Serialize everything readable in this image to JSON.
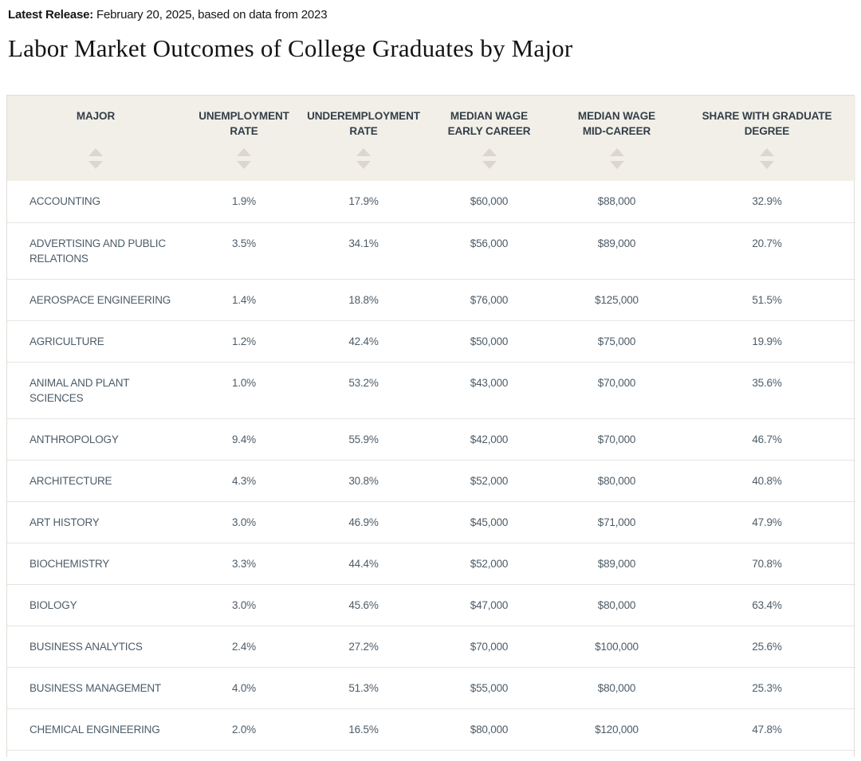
{
  "page": {
    "latest_release_label": "Latest Release:",
    "latest_release_text": " February 20, 2025, based on data from 2023",
    "title": "Labor Market Outcomes of College Graduates by Major"
  },
  "colors": {
    "header_bg": "#f2efe8",
    "header_text": "#333e48",
    "sort_arrow": "#dbd7cf",
    "body_text": "#4d5c68",
    "row_divider": "#e6e5e2",
    "outer_border": "#e0dcd4"
  },
  "icons": {
    "sort_ascending": "sort-up-arrow",
    "sort_descending": "sort-down-arrow"
  },
  "table": {
    "columns": [
      {
        "key": "major",
        "label": "MAJOR"
      },
      {
        "key": "unemployment_rate",
        "label": "UNEMPLOYMENT RATE"
      },
      {
        "key": "underemployment_rate",
        "label": "UNDEREMPLOYMENT RATE"
      },
      {
        "key": "median_wage_early_career",
        "label": "MEDIAN WAGE EARLY CAREER"
      },
      {
        "key": "median_wage_mid_career",
        "label": "MEDIAN WAGE MID-CAREER"
      },
      {
        "key": "share_with_graduate_degree",
        "label": "SHARE WITH GRADUATE DEGREE"
      }
    ],
    "rows": [
      {
        "major": "ACCOUNTING",
        "unemployment_rate": "1.9%",
        "underemployment_rate": "17.9%",
        "median_wage_early_career": "$60,000",
        "median_wage_mid_career": "$88,000",
        "share_with_graduate_degree": "32.9%"
      },
      {
        "major": "ADVERTISING AND PUBLIC RELATIONS",
        "unemployment_rate": "3.5%",
        "underemployment_rate": "34.1%",
        "median_wage_early_career": "$56,000",
        "median_wage_mid_career": "$89,000",
        "share_with_graduate_degree": "20.7%"
      },
      {
        "major": "AEROSPACE ENGINEERING",
        "unemployment_rate": "1.4%",
        "underemployment_rate": "18.8%",
        "median_wage_early_career": "$76,000",
        "median_wage_mid_career": "$125,000",
        "share_with_graduate_degree": "51.5%"
      },
      {
        "major": "AGRICULTURE",
        "unemployment_rate": "1.2%",
        "underemployment_rate": "42.4%",
        "median_wage_early_career": "$50,000",
        "median_wage_mid_career": "$75,000",
        "share_with_graduate_degree": "19.9%"
      },
      {
        "major": "ANIMAL AND PLANT SCIENCES",
        "unemployment_rate": "1.0%",
        "underemployment_rate": "53.2%",
        "median_wage_early_career": "$43,000",
        "median_wage_mid_career": "$70,000",
        "share_with_graduate_degree": "35.6%"
      },
      {
        "major": "ANTHROPOLOGY",
        "unemployment_rate": "9.4%",
        "underemployment_rate": "55.9%",
        "median_wage_early_career": "$42,000",
        "median_wage_mid_career": "$70,000",
        "share_with_graduate_degree": "46.7%"
      },
      {
        "major": "ARCHITECTURE",
        "unemployment_rate": "4.3%",
        "underemployment_rate": "30.8%",
        "median_wage_early_career": "$52,000",
        "median_wage_mid_career": "$80,000",
        "share_with_graduate_degree": "40.8%"
      },
      {
        "major": "ART HISTORY",
        "unemployment_rate": "3.0%",
        "underemployment_rate": "46.9%",
        "median_wage_early_career": "$45,000",
        "median_wage_mid_career": "$71,000",
        "share_with_graduate_degree": "47.9%"
      },
      {
        "major": "BIOCHEMISTRY",
        "unemployment_rate": "3.3%",
        "underemployment_rate": "44.4%",
        "median_wage_early_career": "$52,000",
        "median_wage_mid_career": "$89,000",
        "share_with_graduate_degree": "70.8%"
      },
      {
        "major": "BIOLOGY",
        "unemployment_rate": "3.0%",
        "underemployment_rate": "45.6%",
        "median_wage_early_career": "$47,000",
        "median_wage_mid_career": "$80,000",
        "share_with_graduate_degree": "63.4%"
      },
      {
        "major": "BUSINESS ANALYTICS",
        "unemployment_rate": "2.4%",
        "underemployment_rate": "27.2%",
        "median_wage_early_career": "$70,000",
        "median_wage_mid_career": "$100,000",
        "share_with_graduate_degree": "25.6%"
      },
      {
        "major": "BUSINESS MANAGEMENT",
        "unemployment_rate": "4.0%",
        "underemployment_rate": "51.3%",
        "median_wage_early_career": "$55,000",
        "median_wage_mid_career": "$80,000",
        "share_with_graduate_degree": "25.3%"
      },
      {
        "major": "CHEMICAL ENGINEERING",
        "unemployment_rate": "2.0%",
        "underemployment_rate": "16.5%",
        "median_wage_early_career": "$80,000",
        "median_wage_mid_career": "$120,000",
        "share_with_graduate_degree": "47.8%"
      }
    ]
  }
}
